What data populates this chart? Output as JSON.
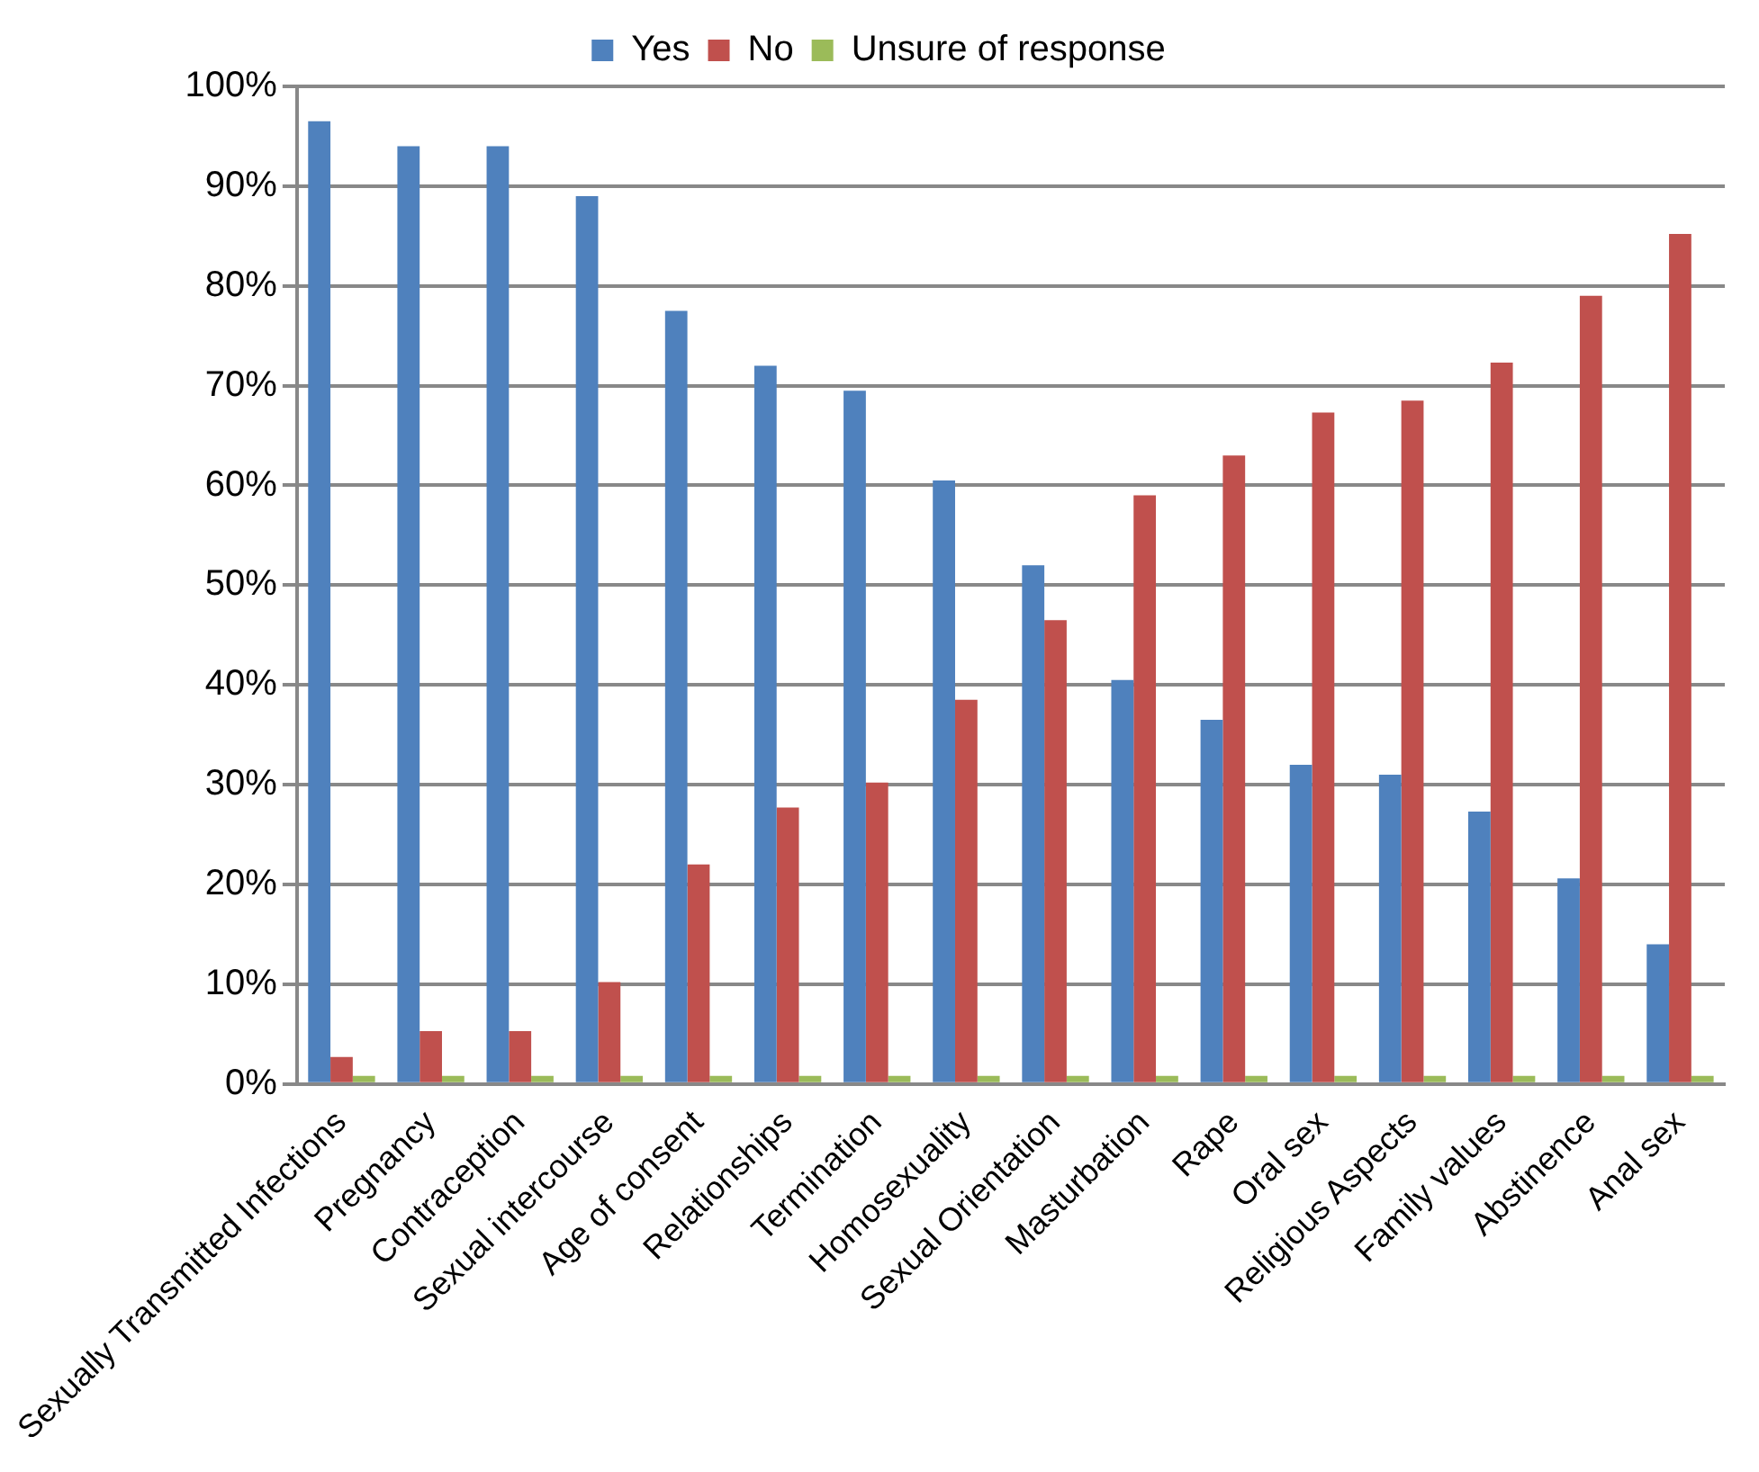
{
  "chart_data": {
    "type": "bar",
    "categories": [
      "Sexually Transmitted Infections",
      "Pregnancy",
      "Contraception",
      "Sexual intercourse",
      "Age of consent",
      "Relationships",
      "Termination",
      "Homosexuality",
      "Sexual Orientation",
      "Masturbation",
      "Rape",
      "Oral sex",
      "Religious Aspects",
      "Family values",
      "Abstinence",
      "Anal sex"
    ],
    "series": [
      {
        "name": "Yes",
        "color": "#4f81bd",
        "values": [
          96.5,
          94,
          94,
          89,
          77.5,
          72,
          69.5,
          60.5,
          52,
          40.5,
          36.5,
          32,
          31,
          27.3,
          20.6,
          14
        ]
      },
      {
        "name": "No",
        "color": "#c0504d",
        "values": [
          2.7,
          5.3,
          5.3,
          10.2,
          22,
          27.7,
          30.2,
          38.5,
          46.5,
          59,
          63,
          67.3,
          68.5,
          72.3,
          79,
          85.2
        ]
      },
      {
        "name": "Unsure of response",
        "color": "#9bbb59",
        "values": [
          0.8,
          0.8,
          0.8,
          0.8,
          0.8,
          0.8,
          0.8,
          0.8,
          0.8,
          0.8,
          0.8,
          0.8,
          0.8,
          0.8,
          0.8,
          0.8
        ]
      }
    ],
    "ylim": [
      0,
      100
    ],
    "yticks": [
      {
        "value": 0,
        "label": "0%"
      },
      {
        "value": 10,
        "label": "10%"
      },
      {
        "value": 20,
        "label": "20%"
      },
      {
        "value": 30,
        "label": "30%"
      },
      {
        "value": 40,
        "label": "40%"
      },
      {
        "value": 50,
        "label": "50%"
      },
      {
        "value": 60,
        "label": "60%"
      },
      {
        "value": 70,
        "label": "70%"
      },
      {
        "value": 80,
        "label": "80%"
      },
      {
        "value": 90,
        "label": "90%"
      },
      {
        "value": 100,
        "label": "100%"
      }
    ],
    "grid": "y",
    "legend": "top"
  }
}
